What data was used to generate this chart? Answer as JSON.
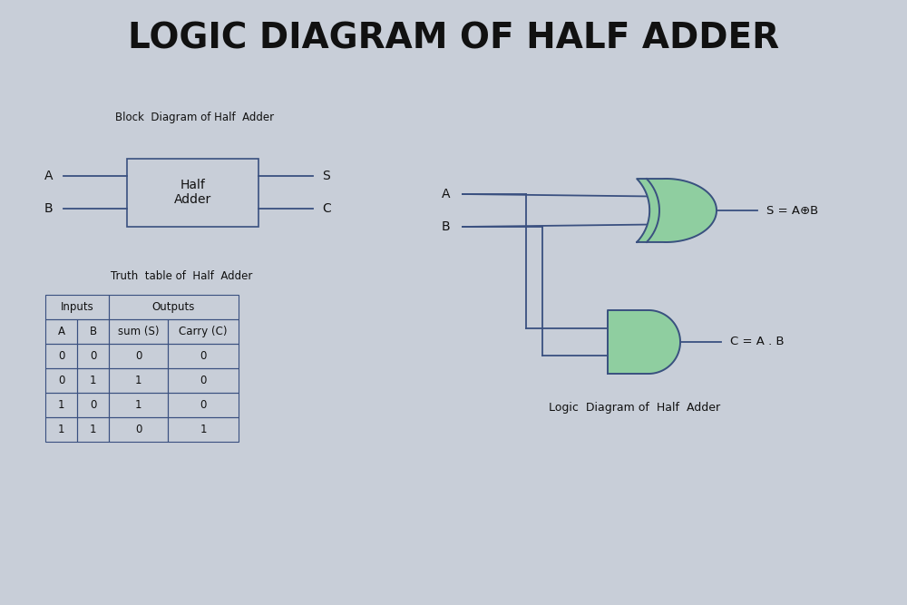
{
  "title": "LOGIC DIAGRAM OF HALF ADDER",
  "title_fontsize": 28,
  "title_fontweight": "bold",
  "bg_color": "#c8ced8",
  "line_color": "#3a5080",
  "gate_fill": "#8fcea0",
  "gate_edge": "#3a5080",
  "text_color": "#1a1a2a",
  "dark_text": "#111111",
  "block_label": "Block  Diagram of Half  Adder",
  "block_box_text": "Half\nAdder",
  "truth_table_label": "Truth  table of  Half  Adder",
  "logic_diagram_label": "Logic  Diagram of  Half  Adder",
  "s_label": "S = A⊕B",
  "c_label": "C = A . B",
  "truth_table": {
    "sub_headers": [
      "A",
      "B",
      "sum (S)",
      "Carry (C)"
    ],
    "rows": [
      [
        "0",
        "0",
        "0",
        "0"
      ],
      [
        "0",
        "1",
        "1",
        "0"
      ],
      [
        "1",
        "0",
        "1",
        "0"
      ],
      [
        "1",
        "1",
        "0",
        "1"
      ]
    ]
  }
}
